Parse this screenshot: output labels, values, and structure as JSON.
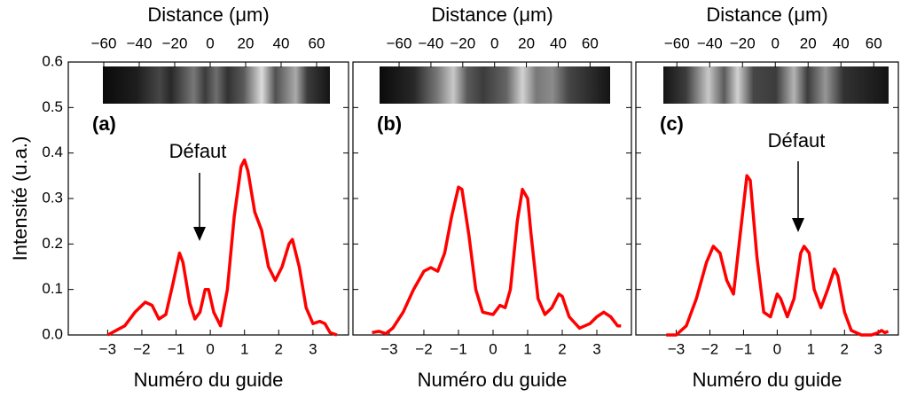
{
  "chart_data": [
    {
      "type": "line",
      "panel_label": "(a)",
      "x2_label": "Distance (μm)",
      "xlabel": "Numéro du guide",
      "ylabel": "Intensité (u.a.)",
      "annotation": "Défaut",
      "color": "#ff0000",
      "xlim": [
        -4.15,
        4.04
      ],
      "xticks": [
        {
          "value": -3,
          "label": "−3"
        },
        {
          "value": -2,
          "label": "−2"
        },
        {
          "value": -1,
          "label": "−1"
        },
        0,
        1,
        2,
        3
      ],
      "x2lim": [
        -80,
        78
      ],
      "x2ticks": [
        {
          "value": -60,
          "label": "−60"
        },
        {
          "value": -40,
          "label": "−40"
        },
        {
          "value": -20,
          "label": "−20"
        },
        0,
        20,
        40,
        60
      ],
      "ylim": [
        0,
        0.6
      ],
      "yticks": [
        {
          "value": 0,
          "label": "0.0"
        },
        0.1,
        0.2,
        0.3,
        0.4,
        0.5,
        0.6
      ],
      "x": [
        -3.0,
        -2.5,
        -2.2,
        -1.9,
        -1.7,
        -1.5,
        -1.3,
        -1.1,
        -0.9,
        -0.8,
        -0.6,
        -0.45,
        -0.3,
        -0.15,
        -0.05,
        0.1,
        0.3,
        0.5,
        0.7,
        0.9,
        1.0,
        1.1,
        1.3,
        1.5,
        1.7,
        1.9,
        2.1,
        2.3,
        2.4,
        2.6,
        2.8,
        3.0,
        3.2,
        3.35,
        3.5,
        3.7
      ],
      "values": [
        0.0,
        0.02,
        0.05,
        0.072,
        0.065,
        0.035,
        0.045,
        0.11,
        0.18,
        0.16,
        0.07,
        0.035,
        0.05,
        0.1,
        0.1,
        0.05,
        0.02,
        0.1,
        0.26,
        0.37,
        0.385,
        0.36,
        0.27,
        0.23,
        0.15,
        0.12,
        0.15,
        0.2,
        0.21,
        0.15,
        0.06,
        0.025,
        0.03,
        0.025,
        0.005,
        0.0
      ]
    },
    {
      "type": "line",
      "panel_label": "(b)",
      "x2_label": "Distance (μm)",
      "xlabel": "Numéro du guide",
      "color": "#ff0000",
      "xlim": [
        -4.05,
        4.0
      ],
      "xticks": [
        {
          "value": -3,
          "label": "−3"
        },
        {
          "value": -2,
          "label": "−2"
        },
        {
          "value": -1,
          "label": "−1"
        },
        0,
        1,
        2,
        3
      ],
      "x2lim": [
        -89,
        86
      ],
      "x2ticks": [
        {
          "value": -60,
          "label": "−60"
        },
        {
          "value": -40,
          "label": "−40"
        },
        {
          "value": -20,
          "label": "−20"
        },
        0,
        20,
        40,
        60
      ],
      "ylim": [
        0,
        0.6
      ],
      "yticks": [
        0,
        0.1,
        0.2,
        0.3,
        0.4,
        0.5,
        0.6
      ],
      "x": [
        -3.5,
        -3.3,
        -3.1,
        -2.9,
        -2.6,
        -2.3,
        -2.0,
        -1.8,
        -1.6,
        -1.4,
        -1.2,
        -1.0,
        -0.9,
        -0.7,
        -0.5,
        -0.3,
        0.0,
        0.2,
        0.35,
        0.5,
        0.7,
        0.85,
        1.0,
        1.1,
        1.3,
        1.5,
        1.7,
        1.9,
        2.0,
        2.2,
        2.5,
        2.8,
        3.0,
        3.2,
        3.4,
        3.6,
        3.7
      ],
      "values": [
        0.005,
        0.008,
        0.003,
        0.015,
        0.05,
        0.1,
        0.14,
        0.148,
        0.14,
        0.18,
        0.26,
        0.325,
        0.32,
        0.22,
        0.1,
        0.05,
        0.045,
        0.065,
        0.06,
        0.1,
        0.25,
        0.32,
        0.3,
        0.22,
        0.08,
        0.045,
        0.06,
        0.09,
        0.085,
        0.04,
        0.015,
        0.025,
        0.04,
        0.05,
        0.04,
        0.02,
        0.02
      ]
    },
    {
      "type": "line",
      "panel_label": "(c)",
      "x2_label": "Distance (μm)",
      "xlabel": "Numéro du guide",
      "annotation": "Défaut",
      "color": "#ff0000",
      "xlim": [
        -4.2,
        3.6
      ],
      "xticks": [
        {
          "value": -3,
          "label": "−3"
        },
        {
          "value": -2,
          "label": "−2"
        },
        {
          "value": -1,
          "label": "−1"
        },
        0,
        1,
        2,
        3
      ],
      "x2lim": [
        -85,
        75
      ],
      "x2ticks": [
        {
          "value": -60,
          "label": "−60"
        },
        {
          "value": -40,
          "label": "−40"
        },
        {
          "value": -20,
          "label": "−20"
        },
        0,
        20,
        40,
        60
      ],
      "ylim": [
        0,
        0.6
      ],
      "yticks": [
        0,
        0.1,
        0.2,
        0.3,
        0.4,
        0.5,
        0.6
      ],
      "x": [
        -3.3,
        -3.0,
        -2.7,
        -2.4,
        -2.1,
        -1.9,
        -1.7,
        -1.5,
        -1.3,
        -1.1,
        -0.9,
        -0.8,
        -0.6,
        -0.4,
        -0.2,
        0.0,
        0.1,
        0.3,
        0.5,
        0.7,
        0.8,
        0.95,
        1.1,
        1.3,
        1.5,
        1.7,
        1.8,
        2.0,
        2.2,
        2.5,
        2.8,
        3.0,
        3.1,
        3.2,
        3.3
      ],
      "values": [
        0.0,
        0.0,
        0.02,
        0.08,
        0.16,
        0.195,
        0.18,
        0.12,
        0.09,
        0.22,
        0.35,
        0.34,
        0.17,
        0.05,
        0.04,
        0.09,
        0.08,
        0.04,
        0.08,
        0.18,
        0.195,
        0.18,
        0.1,
        0.06,
        0.1,
        0.145,
        0.13,
        0.05,
        0.01,
        0.0,
        0.0,
        0.005,
        0.01,
        0.005,
        0.008
      ]
    }
  ]
}
